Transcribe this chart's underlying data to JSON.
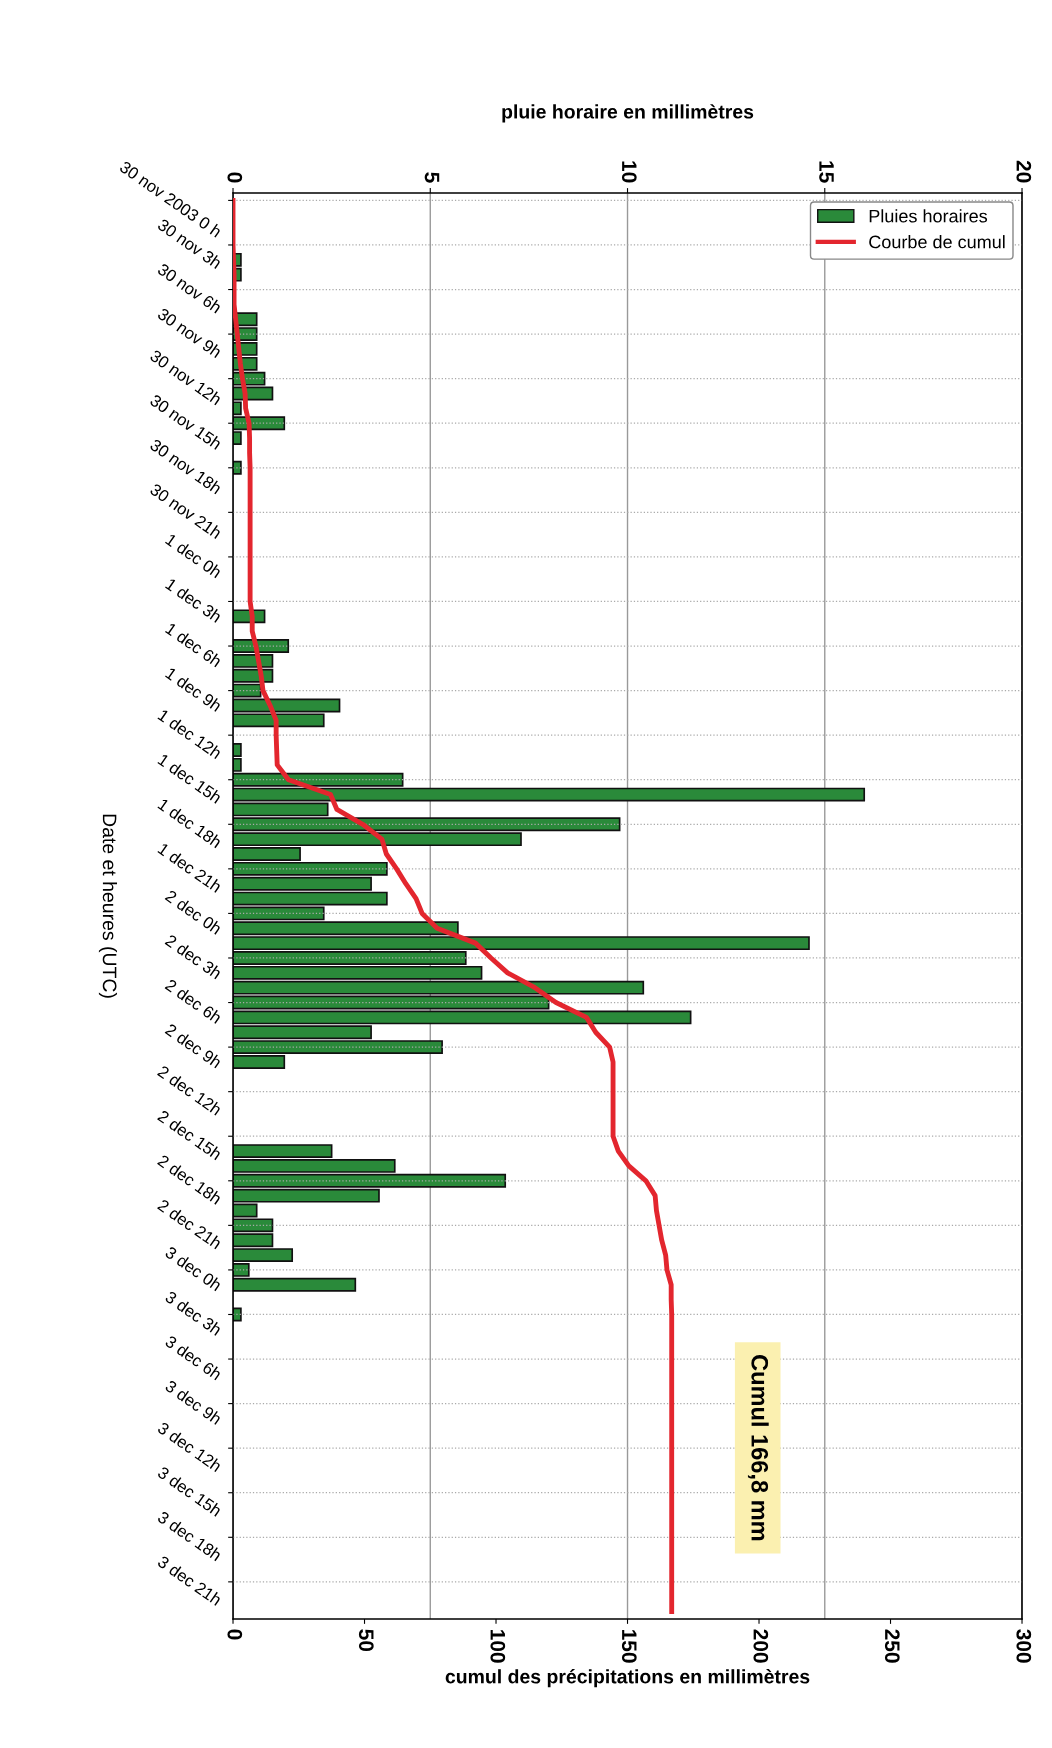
{
  "chart_data": {
    "type": "bar",
    "orientation": "horizontal",
    "x2label": "pluie horaire en millimètres",
    "xlabel": "cumul des précipitations en millimètres",
    "ylabel": "Date et heures (UTC)",
    "categories": [
      "30 nov 2003 0 h",
      null,
      null,
      "30 nov 3h",
      null,
      null,
      "30 nov 6h",
      null,
      null,
      "30 nov 9h",
      null,
      null,
      "30 nov 12h",
      null,
      null,
      "30 nov 15h",
      null,
      null,
      "30 nov 18h",
      null,
      null,
      "30 nov 21h",
      null,
      null,
      "1 dec 0h",
      null,
      null,
      "1 dec 3h",
      null,
      null,
      "1 dec 6h",
      null,
      null,
      "1 dec 9h",
      null,
      null,
      "1 dec 12h",
      null,
      null,
      "1 dec 15h",
      null,
      null,
      "1 dec 18h",
      null,
      null,
      "1 dec 21h",
      null,
      null,
      "2 dec 0h",
      null,
      null,
      "2 dec 3h",
      null,
      null,
      "2 dec 6h",
      null,
      null,
      "2 dec 9h",
      null,
      null,
      "2 dec 12h",
      null,
      null,
      "2 dec 15h",
      null,
      null,
      "2 dec 18h",
      null,
      null,
      "2 dec 21h",
      null,
      null,
      "3 dec 0h",
      null,
      null,
      "3 dec 3h",
      null,
      null,
      "3 dec 6h",
      null,
      null,
      "3 dec 9h",
      null,
      null,
      "3 dec 12h",
      null,
      null,
      "3 dec 15h",
      null,
      null,
      "3 dec 18h",
      null,
      null,
      "3 dec 21h",
      null,
      null
    ],
    "series": [
      {
        "name": "Pluies horaires",
        "type": "bar",
        "axis": "x2",
        "color": "#2a8a3a",
        "values": [
          null,
          null,
          null,
          null,
          0.2,
          0.2,
          null,
          null,
          0.6,
          0.6,
          0.6,
          0.6,
          0.8,
          1.0,
          0.2,
          1.3,
          0.2,
          null,
          0.2,
          null,
          null,
          null,
          null,
          null,
          null,
          null,
          null,
          null,
          0.8,
          null,
          1.4,
          1.0,
          1.0,
          0.7,
          2.7,
          2.3,
          null,
          0.2,
          0.2,
          4.3,
          16.0,
          2.4,
          9.8,
          7.3,
          1.7,
          3.9,
          3.5,
          3.9,
          2.3,
          5.7,
          14.6,
          5.9,
          6.3,
          10.4,
          8.0,
          11.6,
          3.5,
          5.3,
          1.3,
          null,
          null,
          null,
          null,
          null,
          2.5,
          4.1,
          6.9,
          3.7,
          0.6,
          1.0,
          1.0,
          1.5,
          0.4,
          3.1,
          null,
          0.2,
          null,
          null,
          null,
          null,
          null,
          null,
          null,
          null,
          null,
          null,
          null,
          null,
          null,
          null,
          null,
          null,
          null,
          null,
          null,
          null
        ]
      },
      {
        "name": "Courbe de cumul",
        "type": "line",
        "color": "#e3262e",
        "values": [
          0,
          0,
          0,
          0,
          0.2,
          0.4,
          0.4,
          0.4,
          1.0,
          1.6,
          2.2,
          2.8,
          3.6,
          4.6,
          4.8,
          6.1,
          6.3,
          6.3,
          6.5,
          6.5,
          6.5,
          6.5,
          6.5,
          6.5,
          6.5,
          6.5,
          6.5,
          6.5,
          7.3,
          7.3,
          8.7,
          9.7,
          10.7,
          11.4,
          14.1,
          16.4,
          16.4,
          16.6,
          16.8,
          21.1,
          37.1,
          39.5,
          49.3,
          56.6,
          58.3,
          62.2,
          65.7,
          69.6,
          71.9,
          77.6,
          92.2,
          98.1,
          104.4,
          114.8,
          122.8,
          134.4,
          137.9,
          143.2,
          144.5,
          144.5,
          144.5,
          144.5,
          144.5,
          144.5,
          146.5,
          150.5,
          157,
          160.5,
          161,
          162,
          163,
          164.5,
          165,
          166.6,
          166.6,
          166.8,
          166.8,
          166.8,
          166.8,
          166.8,
          166.8,
          166.8,
          166.8,
          166.8,
          166.8,
          166.8,
          166.8,
          166.8,
          166.8,
          166.8,
          166.8,
          166.8,
          166.8,
          166.8,
          166.8,
          166.8
        ]
      }
    ],
    "x2lim": [
      0,
      20
    ],
    "x2ticks": [
      0,
      5,
      10,
      15,
      20
    ],
    "xlim": [
      0,
      300
    ],
    "xticks": [
      0,
      50,
      100,
      150,
      200,
      250,
      300
    ],
    "grid": true,
    "legend": "top right",
    "annotations": [
      "Cumul 166,8 mm"
    ]
  }
}
